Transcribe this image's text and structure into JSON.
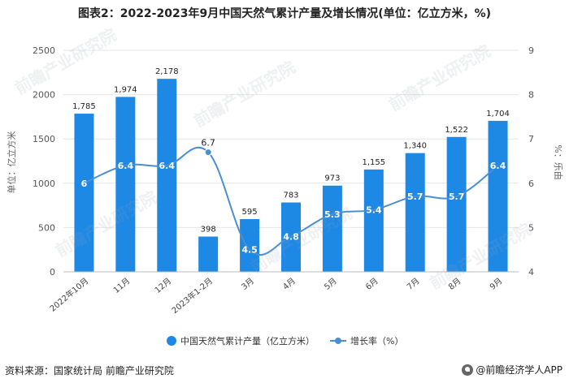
{
  "chart_data": {
    "type": "bar+line",
    "title": "图表2：2022-2023年9月中国天然气累计产量及增长情况(单位：亿立方米，%)",
    "categories": [
      "2022年10月",
      "11月",
      "12月",
      "2023年1-2月",
      "3月",
      "4月",
      "5月",
      "6月",
      "7月",
      "8月",
      "9月"
    ],
    "bar_labels": [
      "1,785",
      "1,974",
      "2,178",
      "398",
      "595",
      "783",
      "973",
      "1,155",
      "1,340",
      "1,522",
      "1,704"
    ],
    "line_labels": [
      "6",
      "6.4",
      "6.4",
      "6.7",
      "4.5",
      "4.8",
      "5.3",
      "5.4",
      "5.7",
      "5.7",
      "6.4"
    ],
    "series": [
      {
        "name": "中国天然气累计产量（亿立方米）",
        "type": "bar",
        "axis": "left",
        "values": [
          1785,
          1974,
          2178,
          398,
          595,
          783,
          973,
          1155,
          1340,
          1522,
          1704
        ]
      },
      {
        "name": "增长率（%）",
        "type": "line",
        "axis": "right",
        "values": [
          6.0,
          6.4,
          6.4,
          6.7,
          4.5,
          4.8,
          5.3,
          5.4,
          5.7,
          5.7,
          6.4
        ]
      }
    ],
    "ylabel_left": "单位：亿立方米",
    "ylabel_right": "%：乐由",
    "ylim_left": [
      0,
      2500
    ],
    "yticks_left": [
      "0",
      "500",
      "1000",
      "1500",
      "2000",
      "2500"
    ],
    "ylim_right": [
      4,
      9
    ],
    "yticks_right": [
      "4",
      "5",
      "6",
      "7",
      "8",
      "9"
    ],
    "legend_position": "bottom",
    "colors": {
      "bar": "#1e88e5",
      "line": "#4a8fd4",
      "grid": "#e6e6e6"
    }
  },
  "source": "资料来源：国家统计局 前瞻产业研究院",
  "brand": "@前瞻经济学人APP",
  "watermark": "前瞻产业研究院"
}
